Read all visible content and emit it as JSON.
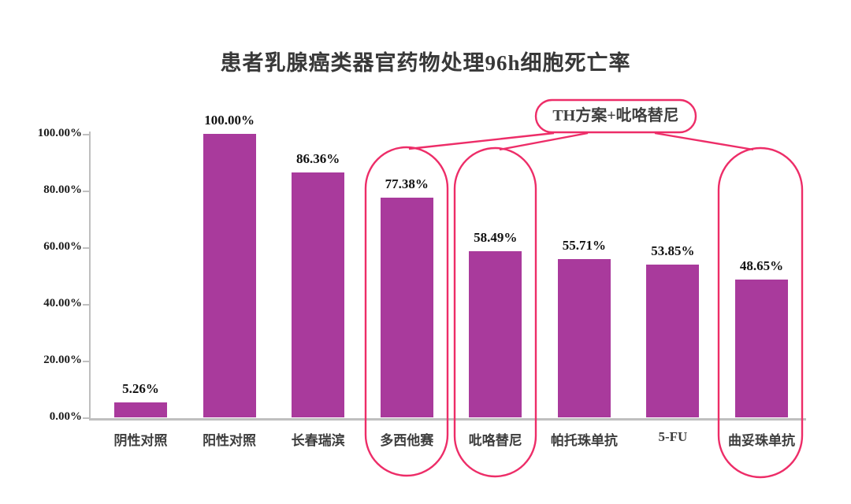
{
  "chart_data": {
    "type": "bar",
    "title": "患者乳腺癌类器官药物处理96h细胞死亡率",
    "categories": [
      "阴性对照",
      "阳性对照",
      "长春瑞滨",
      "多西他赛",
      "吡咯替尼",
      "帕托珠单抗",
      "5-FU",
      "曲妥珠单抗"
    ],
    "values": [
      5.26,
      100.0,
      86.36,
      77.38,
      58.49,
      55.71,
      53.85,
      48.65
    ],
    "value_labels": [
      "5.26%",
      "100.00%",
      "86.36%",
      "77.38%",
      "58.49%",
      "55.71%",
      "53.85%",
      "48.65%"
    ],
    "xlabel": "",
    "ylabel": "",
    "ylim": [
      0,
      100
    ],
    "y_ticks": [
      {
        "label": "0.00%",
        "value": 0
      },
      {
        "label": "20.00%",
        "value": 20
      },
      {
        "label": "40.00%",
        "value": 40
      },
      {
        "label": "60.00%",
        "value": 60
      },
      {
        "label": "80.00%",
        "value": 80
      },
      {
        "label": "100.00%",
        "value": 100
      }
    ],
    "grid": false,
    "legend": null,
    "bar_color": "#A93A9C",
    "annotation": {
      "label": "TH方案+吡咯替尼",
      "color": "#ED2D68",
      "highlighted_categories": [
        "多西他赛",
        "吡咯替尼",
        "曲妥珠单抗"
      ]
    }
  }
}
